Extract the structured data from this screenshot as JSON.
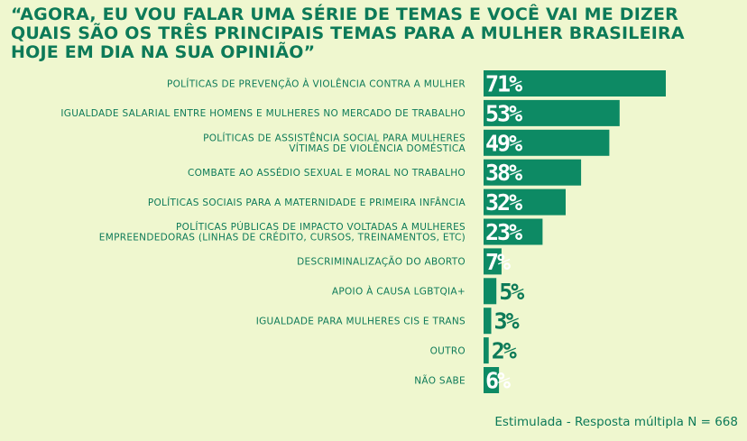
{
  "title": "“AGORA, EU VOU FALAR UMA SÉRIE DE TEMAS E VOCÊ VAI ME DIZER\nQUAIS SÃO OS TRÊS PRINCIPAIS TEMAS PARA A MULHER BRASILEIRA\nHOJE EM DIA NA SUA OPINIÃO”",
  "footer": "Estimulada - Resposta múltipla N = 668",
  "colors": {
    "bar": "#0d8a64",
    "text": "#0d7a58",
    "background": "#eff7cf"
  },
  "chart_data": {
    "type": "bar",
    "orientation": "horizontal",
    "unit": "%",
    "categories": [
      [
        "POLÍTICAS DE PREVENÇÃO À VIOLÊNCIA CONTRA A MULHER"
      ],
      [
        "IGUALDADE SALARIAL ENTRE HOMENS E MULHERES NO MERCADO DE TRABALHO"
      ],
      [
        "POLÍTICAS DE ASSISTÊNCIA SOCIAL PARA MULHERES",
        "VÍTIMAS DE VIOLÊNCIA DOMÉSTICA"
      ],
      [
        "COMBATE AO ASSÉDIO  SEXUAL E MORAL NO TRABALHO"
      ],
      [
        "POLÍTICAS SOCIAIS PARA A MATERNIDADE E PRIMEIRA INFÂNCIA"
      ],
      [
        "POLÍTICAS PÚBLICAS DE IMPACTO VOLTADAS A MULHERES",
        "EMPREENDEDORAS (LINHAS DE CRÉDITO, CURSOS, TREINAMENTOS, ETC)"
      ],
      [
        "DESCRIMINALIZAÇÃO DO ABORTO"
      ],
      [
        "APOIO À CAUSA LGBTQIA+"
      ],
      [
        "IGUALDADE PARA MULHERES CIS E TRANS"
      ],
      [
        "OUTRO"
      ],
      [
        "NÃO SABE"
      ]
    ],
    "values": [
      71,
      53,
      49,
      38,
      32,
      23,
      7,
      5,
      3,
      2,
      6
    ],
    "labels": [
      "71%",
      "53%",
      "49%",
      "38%",
      "32%",
      "23%",
      "7%",
      "5%",
      "3%",
      "2%",
      "6%"
    ],
    "label_position": [
      "inside",
      "inside",
      "inside",
      "inside",
      "inside",
      "inside",
      "inside",
      "outside",
      "outside",
      "outside",
      "inside"
    ],
    "xlim": [
      0,
      71
    ]
  }
}
